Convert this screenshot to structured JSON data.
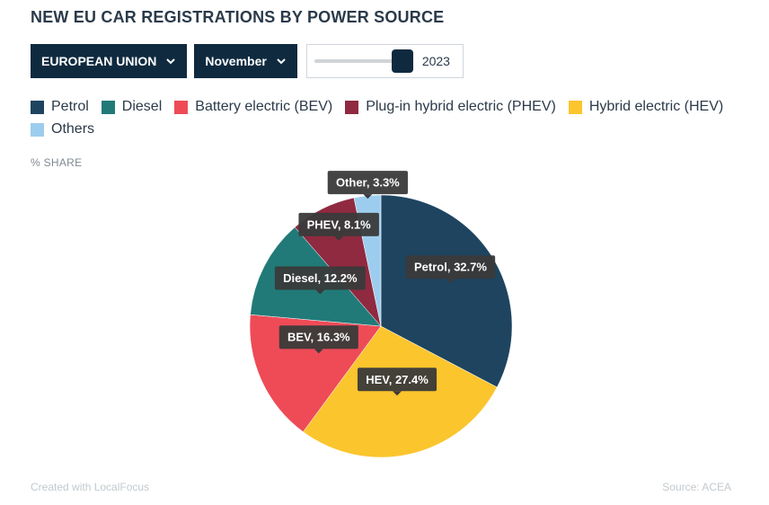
{
  "title": "NEW EU CAR REGISTRATIONS BY POWER SOURCE",
  "controls": {
    "region": {
      "label": "EUROPEAN UNION",
      "icon": "chevron-down-icon"
    },
    "month": {
      "label": "November",
      "icon": "chevron-down-icon"
    },
    "year_slider": {
      "value": "2023",
      "position_fraction": 1.0
    }
  },
  "unit_label": "% SHARE",
  "footer": {
    "credit": "Created with LocalFocus",
    "source": "Source: ACEA"
  },
  "chart_data": {
    "type": "pie",
    "ylabel": "% SHARE",
    "legend_position": "top",
    "categories": [
      "Petrol",
      "Diesel",
      "Battery electric (BEV)",
      "Plug-in hybrid electric (PHEV)",
      "Hybrid electric (HEV)",
      "Others"
    ],
    "colors": [
      "#1e4460",
      "#217a78",
      "#ee4b57",
      "#8f2a40",
      "#fbc52e",
      "#9dcdee"
    ],
    "slices": [
      {
        "name": "Petrol",
        "value": 32.7,
        "color": "#1e4460",
        "label": "Petrol, 32.7%"
      },
      {
        "name": "HEV",
        "value": 27.4,
        "color": "#fbc52e",
        "label": "HEV, 27.4%"
      },
      {
        "name": "BEV",
        "value": 16.3,
        "color": "#ee4b57",
        "label": "BEV, 16.3%"
      },
      {
        "name": "Diesel",
        "value": 12.2,
        "color": "#217a78",
        "label": "Diesel, 12.2%"
      },
      {
        "name": "PHEV",
        "value": 8.1,
        "color": "#8f2a40",
        "label": "PHEV, 8.1%"
      },
      {
        "name": "Other",
        "value": 3.3,
        "color": "#9dcdee",
        "label": "Other, 3.3%"
      }
    ]
  }
}
